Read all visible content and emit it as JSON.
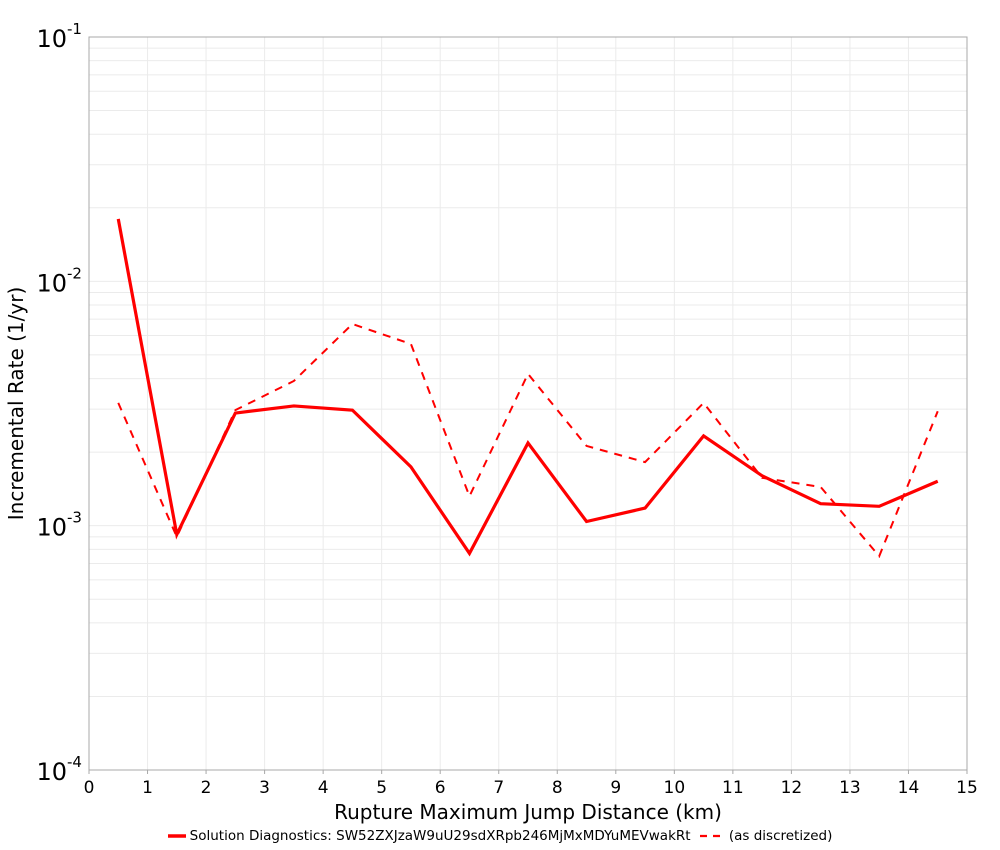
{
  "chart_data": {
    "type": "line",
    "title": "",
    "xlabel": "Rupture Maximum Jump Distance (km)",
    "ylabel": "Incremental Rate (1/yr)",
    "xlim": [
      0,
      15
    ],
    "ylim": [
      0.0001,
      0.1
    ],
    "yscale": "log",
    "grid": true,
    "legend_position": "bottom",
    "x_ticks": [
      "0",
      "1",
      "2",
      "3",
      "4",
      "5",
      "6",
      "7",
      "8",
      "9",
      "10",
      "11",
      "12",
      "13",
      "14",
      "15"
    ],
    "y_ticks": [
      {
        "base": "10",
        "exp": "-1",
        "value": 0.1
      },
      {
        "base": "10",
        "exp": "-2",
        "value": 0.01
      },
      {
        "base": "10",
        "exp": "-3",
        "value": 0.001
      },
      {
        "base": "10",
        "exp": "-4",
        "value": 0.0001
      }
    ],
    "x": [
      0.5,
      1.5,
      2.5,
      3.5,
      4.5,
      5.5,
      6.5,
      7.5,
      8.5,
      9.5,
      10.5,
      11.5,
      12.5,
      13.5,
      14.5
    ],
    "series": [
      {
        "name": "Solution Diagnostics: SW52ZXJzaW9uU29sdXRpb246MjMxMDYuMEVwakRt",
        "color": "#ff0000",
        "style": "solid",
        "values": [
          0.018,
          0.00092,
          0.00289,
          0.00309,
          0.00297,
          0.00174,
          0.00077,
          0.00218,
          0.00104,
          0.00118,
          0.00233,
          0.0016,
          0.00123,
          0.0012,
          0.00152
        ]
      },
      {
        "name": "(as discretized)",
        "color": "#ff0000",
        "style": "dashed",
        "values": [
          0.00318,
          0.0009,
          0.00297,
          0.00391,
          0.00669,
          0.00554,
          0.00132,
          0.00418,
          0.00212,
          0.00182,
          0.00318,
          0.00157,
          0.00144,
          0.00075,
          0.00294
        ]
      }
    ]
  },
  "legend": {
    "items": [
      {
        "label": "Solution Diagnostics: SW52ZXJzaW9uU29sdXRpb246MjMxMDYuMEVwakRt",
        "style": "solid"
      },
      {
        "label": "(as discretized)",
        "style": "dashed"
      }
    ]
  },
  "colors": {
    "series": "#ff0000",
    "grid": "#ebebeb",
    "frame": "#a8a8a8"
  }
}
